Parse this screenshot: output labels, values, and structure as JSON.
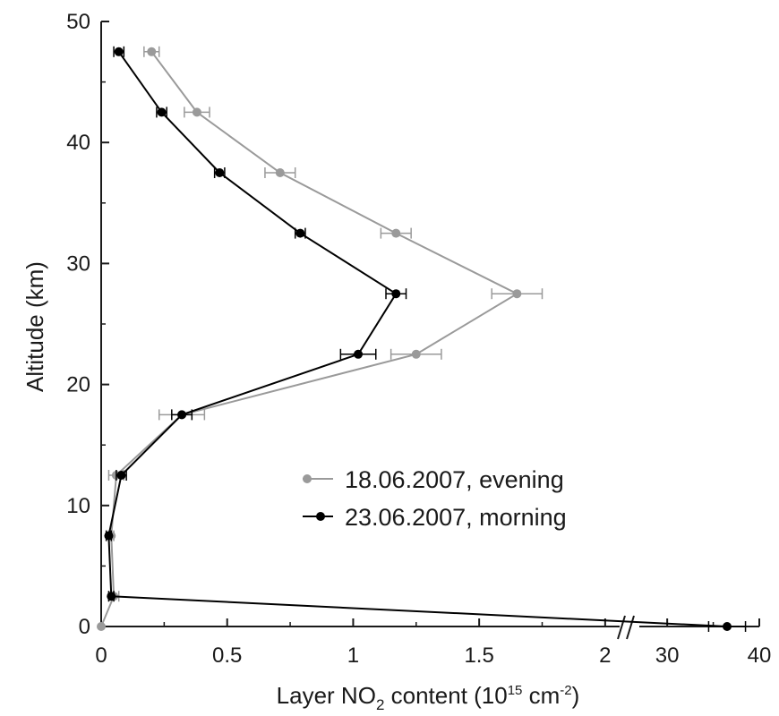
{
  "chart_data": {
    "type": "line",
    "xlabel_parts": {
      "pre": "Layer NO",
      "sub": "2",
      "mid": " content (10",
      "sup1": "15",
      "unit": " cm",
      "sup2": "-2",
      "post": ")"
    },
    "ylabel": "Altitude (km)",
    "ylim": [
      0,
      50
    ],
    "yticks": [
      "0",
      "10",
      "20",
      "30",
      "40",
      "50"
    ],
    "xlim_left": [
      0,
      2.1
    ],
    "xlim_right": [
      26,
      40
    ],
    "xticks_left": [
      "0",
      "0.5",
      "1",
      "1.5",
      "2"
    ],
    "xticks_right": [
      "30",
      "40"
    ],
    "axis_break": true,
    "grid": false,
    "legend_position": "center-right",
    "colors": {
      "evening": "#9a9a9a",
      "morning": "#000000",
      "axis": "#1a1a1a"
    },
    "series": [
      {
        "name": "18.06.2007, evening",
        "points": [
          {
            "x": 0.0,
            "y": 0,
            "err": 0.0
          },
          {
            "x": 0.05,
            "y": 2.5,
            "err": 0.02
          },
          {
            "x": 0.04,
            "y": 7.5,
            "err": 0.01
          },
          {
            "x": 0.06,
            "y": 12.5,
            "err": 0.03
          },
          {
            "x": 0.32,
            "y": 17.5,
            "err": 0.09
          },
          {
            "x": 1.25,
            "y": 22.5,
            "err": 0.1
          },
          {
            "x": 1.65,
            "y": 27.5,
            "err": 0.1
          },
          {
            "x": 1.17,
            "y": 32.5,
            "err": 0.06
          },
          {
            "x": 0.71,
            "y": 37.5,
            "err": 0.06
          },
          {
            "x": 0.38,
            "y": 42.5,
            "err": 0.05
          },
          {
            "x": 0.2,
            "y": 47.5,
            "err": 0.03
          }
        ]
      },
      {
        "name": "23.06.2007, morning",
        "points": [
          {
            "x": 36.5,
            "y": 0,
            "err": 2.0
          },
          {
            "x": 0.04,
            "y": 2.5,
            "err": 0.01
          },
          {
            "x": 0.03,
            "y": 7.5,
            "err": 0.01
          },
          {
            "x": 0.08,
            "y": 12.5,
            "err": 0.02
          },
          {
            "x": 0.32,
            "y": 17.5,
            "err": 0.04
          },
          {
            "x": 1.02,
            "y": 22.5,
            "err": 0.07
          },
          {
            "x": 1.17,
            "y": 27.5,
            "err": 0.04
          },
          {
            "x": 0.79,
            "y": 32.5,
            "err": 0.02
          },
          {
            "x": 0.47,
            "y": 37.5,
            "err": 0.02
          },
          {
            "x": 0.24,
            "y": 42.5,
            "err": 0.02
          },
          {
            "x": 0.07,
            "y": 47.5,
            "err": 0.02
          }
        ]
      }
    ]
  }
}
